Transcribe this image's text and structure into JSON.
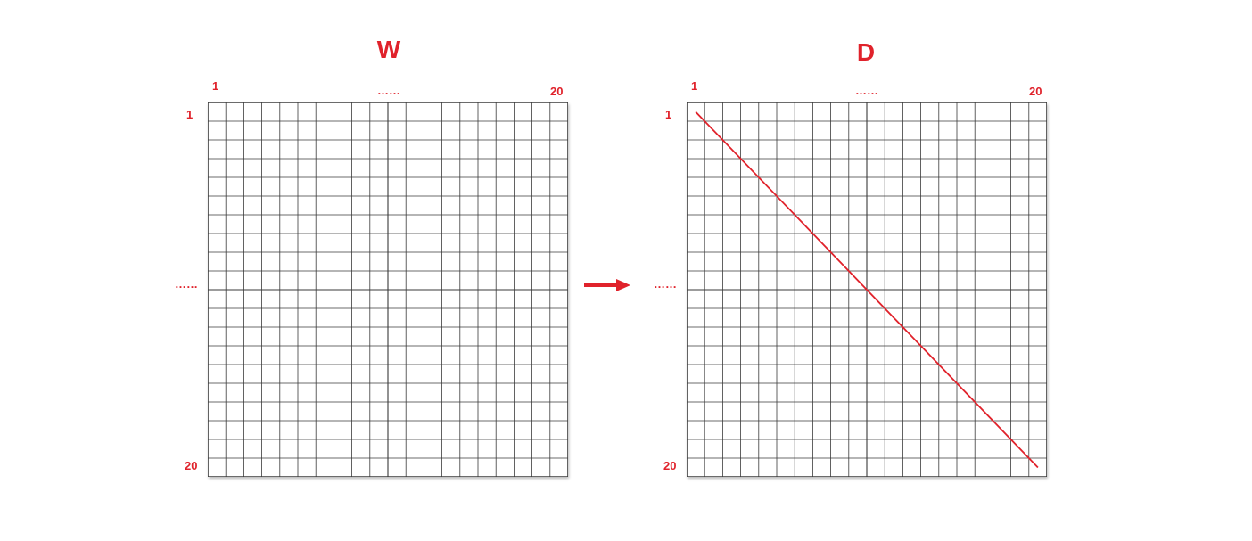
{
  "grid_size": 20,
  "colors": {
    "accent": "#e0222b",
    "line": "#3a3a3a"
  },
  "panels": [
    {
      "title": "W",
      "col_labels": {
        "first": "1",
        "middle": "……",
        "last": "20"
      },
      "row_labels": {
        "first": "1",
        "middle": "……",
        "last": "20"
      },
      "diagonal": false
    },
    {
      "title": "D",
      "col_labels": {
        "first": "1",
        "middle": "……",
        "last": "20"
      },
      "row_labels": {
        "first": "1",
        "middle": "……",
        "last": "20"
      },
      "diagonal": true
    }
  ],
  "arrow": {
    "direction": "right"
  }
}
